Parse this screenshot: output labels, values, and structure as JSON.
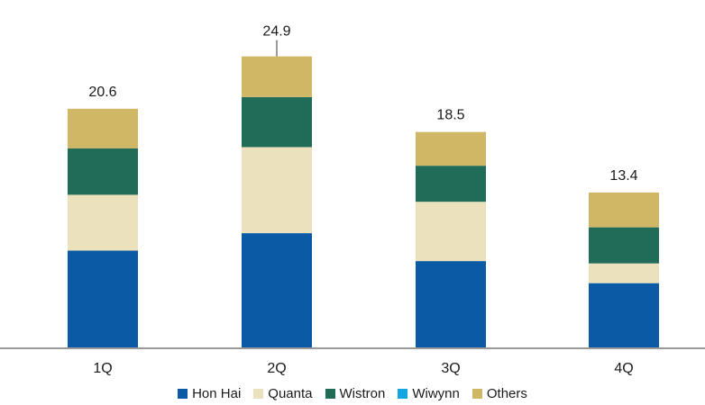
{
  "chart_data": {
    "type": "bar",
    "stacked": true,
    "categories": [
      "1Q",
      "2Q",
      "3Q",
      "4Q"
    ],
    "totals": [
      "20.6",
      "24.9",
      "18.5",
      "13.4"
    ],
    "ylim": [
      0,
      26.7
    ],
    "grid": false,
    "legend_position": "bottom",
    "series": [
      {
        "name": "Hon Hai",
        "color": "#0b5aa6",
        "values": [
          8.4,
          9.9,
          7.5,
          5.6
        ]
      },
      {
        "name": "Quanta",
        "color": "#ebe1bd",
        "values": [
          4.8,
          7.4,
          5.1,
          1.7
        ]
      },
      {
        "name": "Wistron",
        "color": "#216b59",
        "values": [
          4.0,
          4.3,
          3.1,
          3.1
        ]
      },
      {
        "name": "Wiwynn",
        "color": "#14a6e0",
        "values": [
          0,
          0,
          0,
          0
        ]
      },
      {
        "name": "Others",
        "color": "#cfb766",
        "values": [
          3.4,
          3.5,
          2.9,
          3.0
        ]
      }
    ]
  }
}
